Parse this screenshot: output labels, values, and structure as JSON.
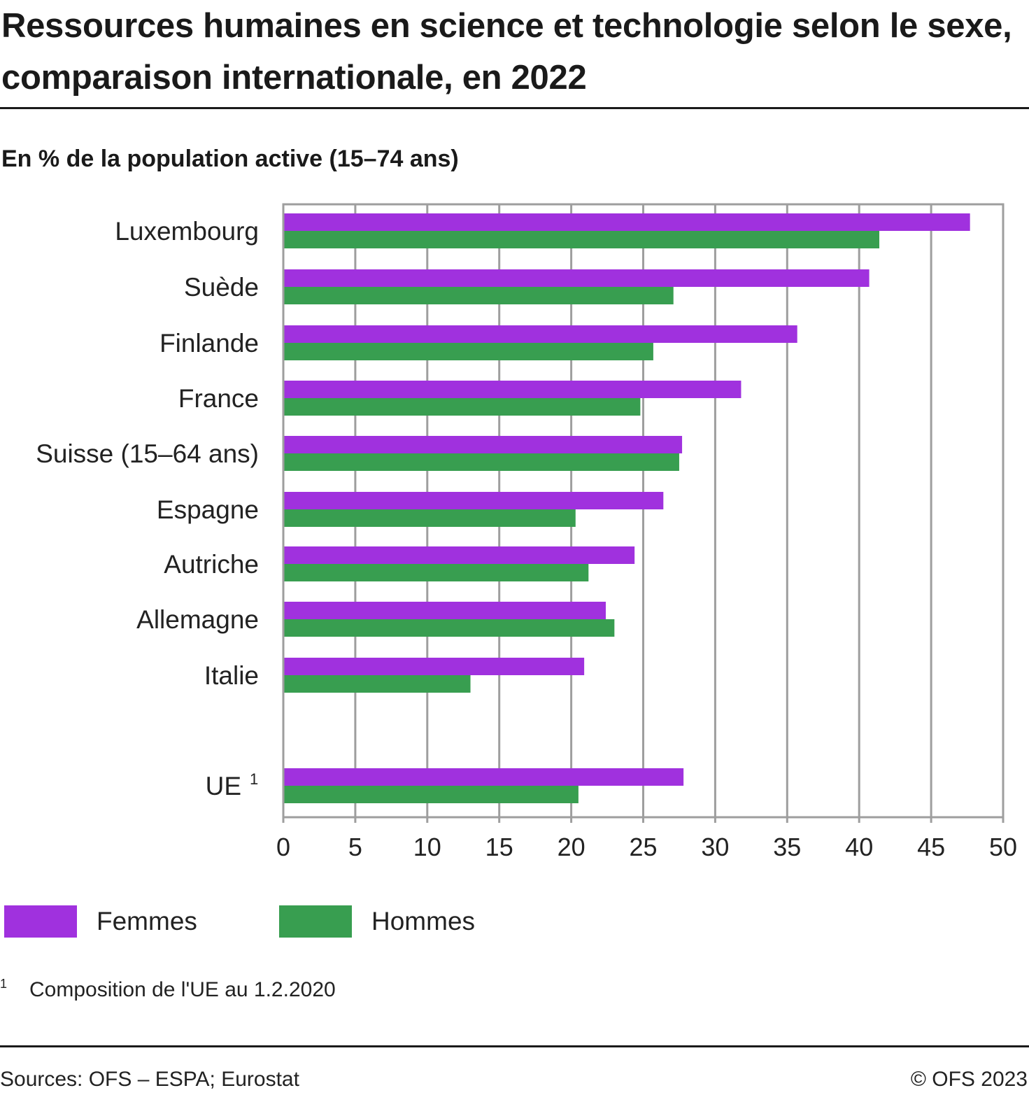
{
  "title": "Ressources humaines en science et technologie selon le sexe, comparaison internationale, en 2022",
  "subtitle": "En % de la population active (15–74 ans)",
  "colors": {
    "femmes": "#a031de",
    "hommes": "#389e50",
    "grid": "#9e9e9e",
    "text": "#1a1a1a"
  },
  "chart_data": {
    "type": "bar",
    "orientation": "horizontal",
    "title": "Ressources humaines en science et technologie selon le sexe, comparaison internationale, en 2022",
    "ylabel": "En % de la population active (15–74 ans)",
    "xlabel": "",
    "categories": [
      "Luxembourg",
      "Suède",
      "Finlande",
      "France",
      "Suisse (15–64 ans)",
      "Espagne",
      "Autriche",
      "Allemagne",
      "Italie",
      "UE"
    ],
    "category_superscripts": [
      "",
      "",
      "",
      "",
      "",
      "",
      "",
      "",
      "",
      "1"
    ],
    "series": [
      {
        "name": "Femmes",
        "values": [
          47.7,
          40.7,
          35.7,
          31.8,
          27.7,
          26.4,
          24.4,
          22.4,
          20.9,
          27.8
        ]
      },
      {
        "name": "Hommes",
        "values": [
          41.4,
          27.1,
          25.7,
          24.8,
          27.5,
          20.3,
          21.2,
          23.0,
          13.0,
          20.5
        ]
      }
    ],
    "xlim": [
      0,
      50
    ],
    "xticks": [
      "0",
      "5",
      "10",
      "15",
      "20",
      "25",
      "30",
      "35",
      "40",
      "45",
      "50"
    ],
    "grid": true,
    "legend_placement": "bottom-left"
  },
  "legend": {
    "femmes": "Femmes",
    "hommes": "Hommes"
  },
  "footnote": {
    "marker": "1",
    "text": "Composition de l'UE au 1.2.2020"
  },
  "sources": "Sources: OFS – ESPA; Eurostat",
  "copyright": "© OFS 2023"
}
